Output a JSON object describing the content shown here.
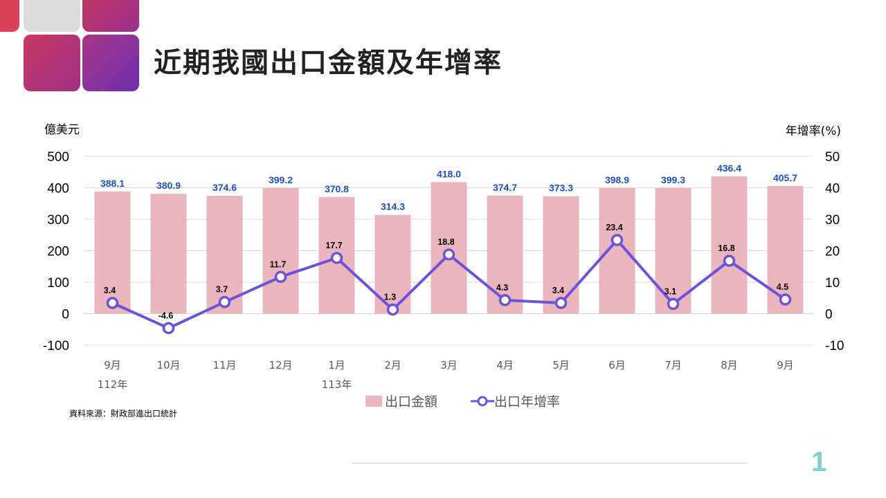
{
  "title": "近期我國出口金額及年增率",
  "page_number": "1",
  "source": "資料來源：財政部進出口統計",
  "colors": {
    "bar": "#ebb5bd",
    "line": "#6c52d9",
    "bar_label": "#1f4fbf",
    "line_label": "#000000",
    "title": "#222222",
    "page_number": "#7fcfcf"
  },
  "chart_data": {
    "type": "bar",
    "categories": [
      "9月",
      "10月",
      "11月",
      "12月",
      "1月",
      "2月",
      "3月",
      "4月",
      "5月",
      "6月",
      "7月",
      "8月",
      "9月"
    ],
    "year_labels": [
      {
        "index": 0,
        "text": "112年"
      },
      {
        "index": 4,
        "text": "113年"
      }
    ],
    "series": [
      {
        "name": "出口金額",
        "type": "bar",
        "axis": "left",
        "values": [
          388.1,
          380.9,
          374.6,
          399.2,
          370.8,
          314.3,
          418.0,
          374.7,
          373.3,
          398.9,
          399.3,
          436.4,
          405.7
        ],
        "labels": [
          "388.1",
          "380.9",
          "374.6",
          "399.2",
          "370.8",
          "314.3",
          "418.0",
          "374.7",
          "373.3",
          "398.9",
          "399.3",
          "436.4",
          "405.7"
        ]
      },
      {
        "name": "出口年增率",
        "type": "line",
        "axis": "right",
        "values": [
          3.4,
          -4.6,
          3.7,
          11.7,
          17.7,
          1.3,
          18.8,
          4.3,
          3.4,
          23.4,
          3.1,
          16.8,
          4.5
        ],
        "labels": [
          "3.4",
          "-4.6",
          "3.7",
          "11.7",
          "17.7",
          "1.3",
          "18.8",
          "4.3",
          "3.4",
          "23.4",
          "3.1",
          "16.8",
          "4.5"
        ]
      }
    ],
    "left_axis": {
      "unit": "億美元",
      "ylim": [
        -100,
        500
      ],
      "ticks": [
        "500",
        "400",
        "300",
        "200",
        "100",
        "0",
        "-100"
      ]
    },
    "right_axis": {
      "unit": "年增率(%)",
      "ylim": [
        -10,
        50
      ],
      "ticks": [
        "50",
        "40",
        "30",
        "20",
        "10",
        "0",
        "-10"
      ]
    },
    "grid": true,
    "legend_position": "bottom"
  }
}
